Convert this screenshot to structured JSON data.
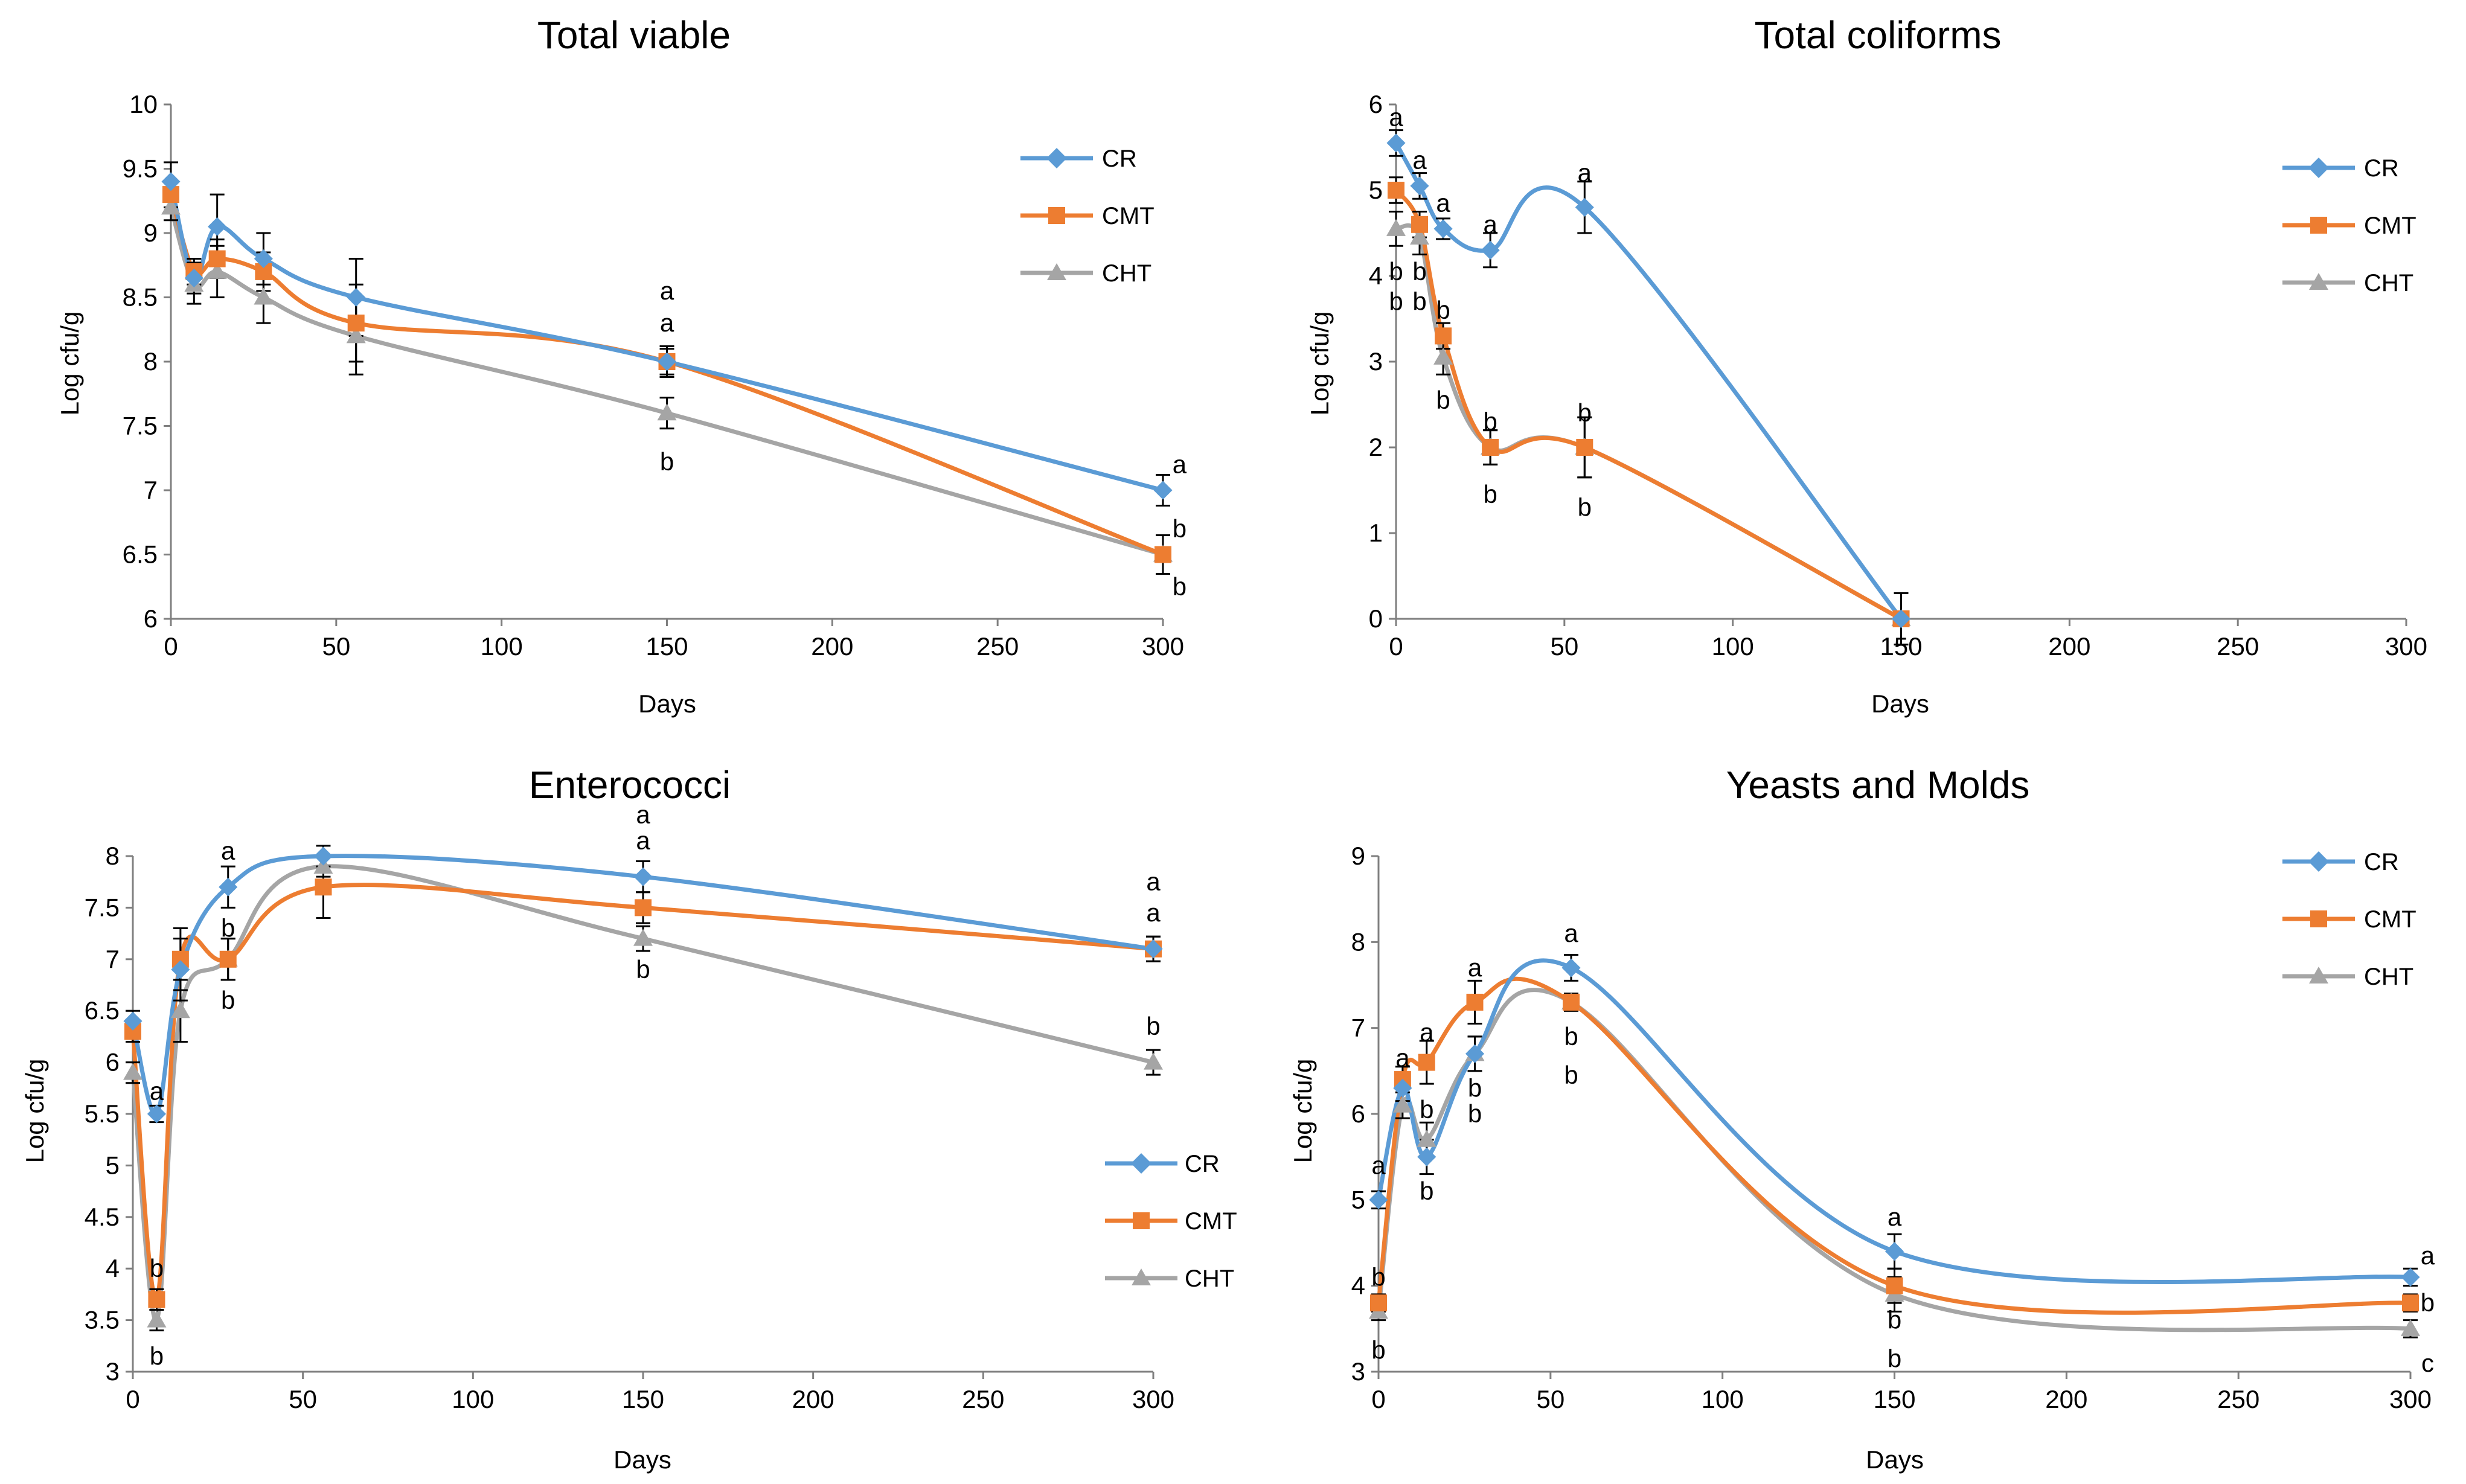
{
  "colors": {
    "CR": "#5B9BD5",
    "CMT": "#ED7D31",
    "CHT": "#A5A5A5",
    "axis": "#7F7F7F",
    "errorbar": "#000000"
  },
  "chart_data": [
    {
      "type": "line",
      "title": "Total viable",
      "xlabel": "Days",
      "ylabel": "Log cfu/g",
      "xlim": [
        0,
        300
      ],
      "ylim": [
        6,
        10
      ],
      "xticks": [
        0,
        50,
        100,
        150,
        200,
        250,
        300
      ],
      "yticks": [
        6,
        6.5,
        7,
        7.5,
        8,
        8.5,
        9,
        9.5,
        10
      ],
      "ytick_labels": [
        "6",
        "6.5",
        "7",
        "7.5",
        "8",
        "8.5",
        "9",
        "9.5",
        "10"
      ],
      "legend": "top-right",
      "x": [
        0,
        7,
        14,
        28,
        56,
        150,
        300
      ],
      "series": [
        {
          "name": "CR",
          "color": "#5B9BD5",
          "marker": "diamond",
          "values": [
            9.4,
            8.65,
            9.05,
            8.8,
            8.5,
            8.0,
            7.0
          ],
          "errors": [
            0.15,
            0.12,
            0.25,
            0.2,
            0.3,
            0.12,
            0.12
          ]
        },
        {
          "name": "CMT",
          "color": "#ED7D31",
          "marker": "square",
          "values": [
            9.3,
            8.7,
            8.8,
            8.7,
            8.3,
            8.0,
            6.5
          ],
          "errors": [
            0.1,
            0.1,
            0.15,
            0.15,
            0.3,
            0.1,
            0.15
          ]
        },
        {
          "name": "CHT",
          "color": "#A5A5A5",
          "marker": "triangle",
          "values": [
            9.2,
            8.6,
            8.7,
            8.5,
            8.2,
            7.6,
            6.5
          ],
          "errors": [
            0.1,
            0.15,
            0.2,
            0.2,
            0.3,
            0.12,
            0.15
          ]
        }
      ],
      "annotations": [
        {
          "text": "a",
          "x": 150,
          "y": 8.55
        },
        {
          "text": "a",
          "x": 150,
          "y": 8.3
        },
        {
          "text": "b",
          "x": 150,
          "y": 7.22
        },
        {
          "text": "a",
          "x": 305,
          "y": 7.2
        },
        {
          "text": "b",
          "x": 305,
          "y": 6.7
        },
        {
          "text": "b",
          "x": 305,
          "y": 6.25
        }
      ]
    },
    {
      "type": "line",
      "title": "Total coliforms",
      "xlabel": "Days",
      "ylabel": "Log cfu/g",
      "xlim": [
        0,
        300
      ],
      "ylim": [
        0,
        6
      ],
      "xticks": [
        0,
        50,
        100,
        150,
        200,
        250,
        300
      ],
      "yticks": [
        0,
        1,
        2,
        3,
        4,
        5,
        6
      ],
      "ytick_labels": [
        "0",
        "1",
        "2",
        "3",
        "4",
        "5",
        "6"
      ],
      "legend": "top-right",
      "x": [
        0,
        7,
        14,
        28,
        56,
        150
      ],
      "series": [
        {
          "name": "CR",
          "color": "#5B9BD5",
          "marker": "diamond",
          "values": [
            5.55,
            5.05,
            4.55,
            4.3,
            4.8,
            0.0
          ],
          "errors": [
            0.15,
            0.15,
            0.12,
            0.2,
            0.3,
            0.0
          ]
        },
        {
          "name": "CMT",
          "color": "#ED7D31",
          "marker": "square",
          "values": [
            5.0,
            4.6,
            3.3,
            2.0,
            2.0,
            0.0
          ],
          "errors": [
            0.15,
            0.15,
            0.15,
            0.2,
            0.35,
            0.3
          ]
        },
        {
          "name": "CHT",
          "color": "#A5A5A5",
          "marker": "triangle",
          "values": [
            4.55,
            4.45,
            3.05,
            2.0,
            2.0,
            0.0
          ],
          "errors": [
            0.2,
            0.2,
            0.2,
            0.2,
            0.35,
            0.0
          ]
        }
      ],
      "annotations": [
        {
          "text": "a",
          "x": 0,
          "y": 5.85
        },
        {
          "text": "a",
          "x": 7,
          "y": 5.35
        },
        {
          "text": "a",
          "x": 14,
          "y": 4.85
        },
        {
          "text": "a",
          "x": 28,
          "y": 4.6
        },
        {
          "text": "a",
          "x": 56,
          "y": 5.2
        },
        {
          "text": "b",
          "x": 0,
          "y": 4.05
        },
        {
          "text": "b",
          "x": 0,
          "y": 3.7
        },
        {
          "text": "b",
          "x": 7,
          "y": 4.05
        },
        {
          "text": "b",
          "x": 7,
          "y": 3.7
        },
        {
          "text": "b",
          "x": 14,
          "y": 3.6
        },
        {
          "text": "b",
          "x": 14,
          "y": 2.55
        },
        {
          "text": "b",
          "x": 28,
          "y": 2.3
        },
        {
          "text": "b",
          "x": 28,
          "y": 1.45
        },
        {
          "text": "b",
          "x": 56,
          "y": 2.4
        },
        {
          "text": "b",
          "x": 56,
          "y": 1.3
        }
      ]
    },
    {
      "type": "line",
      "title": "Enterococci",
      "xlabel": "Days",
      "ylabel": "Log cfu/g",
      "xlim": [
        0,
        300
      ],
      "ylim": [
        3,
        8
      ],
      "xticks": [
        0,
        50,
        100,
        150,
        200,
        250,
        300
      ],
      "yticks": [
        3,
        3.5,
        4,
        4.5,
        5,
        5.5,
        6,
        6.5,
        7,
        7.5,
        8
      ],
      "ytick_labels": [
        "3",
        "3.5",
        "4",
        "4.5",
        "5",
        "5.5",
        "6",
        "6.5",
        "7",
        "7.5",
        "8"
      ],
      "legend": "bottom-right",
      "x": [
        0,
        7,
        14,
        28,
        56,
        150,
        300
      ],
      "series": [
        {
          "name": "CR",
          "color": "#5B9BD5",
          "marker": "diamond",
          "values": [
            6.4,
            5.5,
            6.9,
            7.7,
            8.0,
            7.8,
            7.1
          ],
          "errors": [
            0.1,
            0.08,
            0.3,
            0.2,
            0.1,
            0.15,
            0.12
          ]
        },
        {
          "name": "CMT",
          "color": "#ED7D31",
          "marker": "square",
          "values": [
            6.3,
            3.7,
            7.0,
            7.0,
            7.7,
            7.5,
            7.1
          ],
          "errors": [
            0.1,
            0.1,
            0.3,
            0.2,
            0.3,
            0.15,
            0.12
          ]
        },
        {
          "name": "CHT",
          "color": "#A5A5A5",
          "marker": "triangle",
          "values": [
            5.9,
            3.5,
            6.5,
            7.0,
            7.9,
            7.2,
            6.0
          ],
          "errors": [
            0.1,
            0.1,
            0.3,
            0.2,
            0.1,
            0.12,
            0.12
          ]
        }
      ],
      "annotations": [
        {
          "text": "a",
          "x": 7,
          "y": 5.72
        },
        {
          "text": "b",
          "x": 7,
          "y": 4.0
        },
        {
          "text": "b",
          "x": 7,
          "y": 3.15
        },
        {
          "text": "a",
          "x": 28,
          "y": 8.05
        },
        {
          "text": "b",
          "x": 28,
          "y": 7.3
        },
        {
          "text": "b",
          "x": 28,
          "y": 6.6
        },
        {
          "text": "a",
          "x": 150,
          "y": 8.4
        },
        {
          "text": "a",
          "x": 150,
          "y": 8.15
        },
        {
          "text": "b",
          "x": 150,
          "y": 6.9
        },
        {
          "text": "a",
          "x": 300,
          "y": 7.75
        },
        {
          "text": "a",
          "x": 300,
          "y": 7.45
        },
        {
          "text": "b",
          "x": 300,
          "y": 6.35
        }
      ]
    },
    {
      "type": "line",
      "title": "Yeasts and Molds",
      "xlabel": "Days",
      "ylabel": "Log cfu/g",
      "xlim": [
        0,
        300
      ],
      "ylim": [
        3,
        9
      ],
      "xticks": [
        0,
        50,
        100,
        150,
        200,
        250,
        300
      ],
      "yticks": [
        3,
        4,
        5,
        6,
        7,
        8,
        9
      ],
      "ytick_labels": [
        "3",
        "4",
        "5",
        "6",
        "7",
        "8",
        "9"
      ],
      "legend": "top-right",
      "x": [
        0,
        7,
        14,
        28,
        56,
        150,
        300
      ],
      "series": [
        {
          "name": "CR",
          "color": "#5B9BD5",
          "marker": "diamond",
          "values": [
            5.0,
            6.3,
            5.5,
            6.7,
            7.7,
            4.4,
            4.1
          ],
          "errors": [
            0.1,
            0.15,
            0.2,
            0.2,
            0.15,
            0.2,
            0.1
          ]
        },
        {
          "name": "CMT",
          "color": "#ED7D31",
          "marker": "square",
          "values": [
            3.8,
            6.4,
            6.6,
            7.3,
            7.3,
            4.0,
            3.8
          ],
          "errors": [
            0.1,
            0.15,
            0.25,
            0.25,
            0.1,
            0.2,
            0.1
          ]
        },
        {
          "name": "CHT",
          "color": "#A5A5A5",
          "marker": "triangle",
          "values": [
            3.7,
            6.1,
            5.7,
            6.7,
            7.3,
            3.9,
            3.5
          ],
          "errors": [
            0.1,
            0.15,
            0.2,
            0.2,
            0.1,
            0.2,
            0.1
          ]
        }
      ],
      "annotations": [
        {
          "text": "a",
          "x": 0,
          "y": 5.4
        },
        {
          "text": "b",
          "x": 0,
          "y": 4.1
        },
        {
          "text": "b",
          "x": 0,
          "y": 3.25
        },
        {
          "text": "a",
          "x": 7,
          "y": 6.65
        },
        {
          "text": "a",
          "x": 14,
          "y": 6.95
        },
        {
          "text": "b",
          "x": 14,
          "y": 6.05
        },
        {
          "text": "b",
          "x": 14,
          "y": 5.1
        },
        {
          "text": "a",
          "x": 28,
          "y": 7.7
        },
        {
          "text": "b",
          "x": 28,
          "y": 6.3
        },
        {
          "text": "b",
          "x": 28,
          "y": 6.0
        },
        {
          "text": "a",
          "x": 56,
          "y": 8.1
        },
        {
          "text": "b",
          "x": 56,
          "y": 6.9
        },
        {
          "text": "b",
          "x": 56,
          "y": 6.45
        },
        {
          "text": "a",
          "x": 150,
          "y": 4.8
        },
        {
          "text": "b",
          "x": 150,
          "y": 3.6
        },
        {
          "text": "b",
          "x": 150,
          "y": 3.15
        },
        {
          "text": "a",
          "x": 305,
          "y": 4.35
        },
        {
          "text": "b",
          "x": 305,
          "y": 3.8
        },
        {
          "text": "c",
          "x": 305,
          "y": 3.1
        }
      ]
    }
  ]
}
